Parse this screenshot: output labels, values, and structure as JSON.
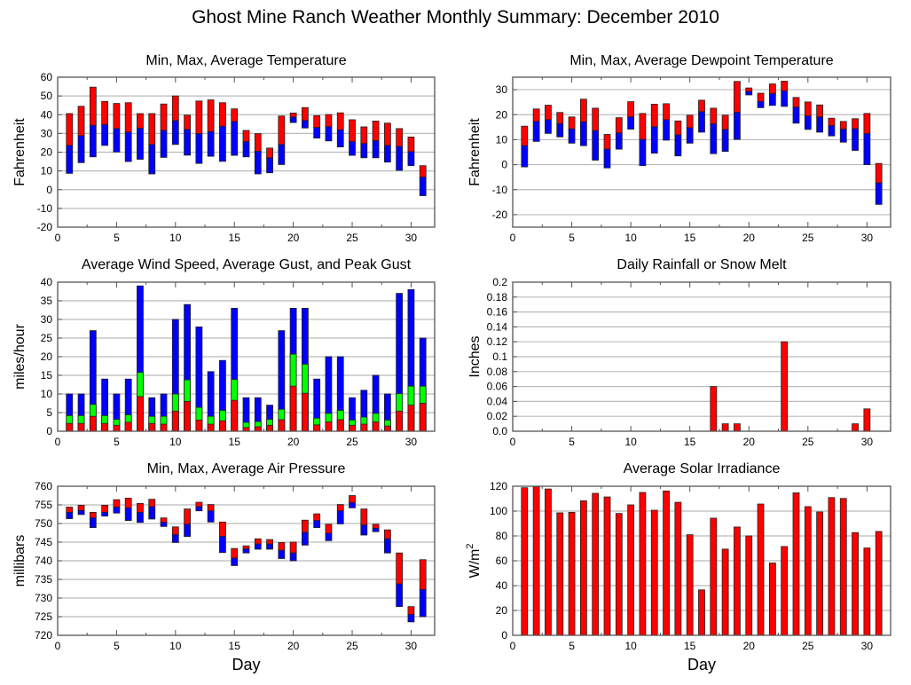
{
  "title": "Ghost Mine Ranch Weather Monthly Summary: December 2010",
  "colors": {
    "red": "#ff0000",
    "blue": "#0000ff",
    "green": "#00ff00",
    "grid": "#bbbbbb",
    "frame": "#555555"
  },
  "chart_data": [
    {
      "id": "temperature",
      "type": "bar",
      "subtype": "floating-range",
      "title": "Min, Max, Average Temperature",
      "ylabel": "Fahrenheit",
      "xlabel": "",
      "xlim": [
        0,
        32
      ],
      "ylim": [
        -20,
        60
      ],
      "yticks": [
        -20,
        -10,
        0,
        10,
        20,
        30,
        40,
        50,
        60
      ],
      "ytick_labels": [
        "-20",
        "-10",
        "0",
        "10",
        "20",
        "30",
        "40",
        "50",
        "60"
      ],
      "xticks": [
        0,
        5,
        10,
        15,
        20,
        25,
        30
      ],
      "grid": true,
      "x": [
        1,
        2,
        3,
        4,
        5,
        6,
        7,
        8,
        9,
        10,
        11,
        12,
        13,
        14,
        15,
        16,
        17,
        18,
        19,
        20,
        21,
        22,
        23,
        24,
        25,
        26,
        27,
        28,
        29,
        30,
        31
      ],
      "series": [
        {
          "name": "Max",
          "color": "red",
          "values": [
            40.6,
            44.5,
            54.7,
            47.1,
            46.0,
            46.4,
            40.6,
            40.6,
            45.7,
            50.0,
            39.8,
            47.3,
            47.9,
            46.4,
            43.1,
            31.6,
            29.9,
            22.2,
            39.3,
            40.9,
            43.8,
            39.5,
            40.1,
            41.0,
            37.3,
            33.5,
            36.6,
            35.5,
            32.6,
            28.1,
            12.8
          ]
        },
        {
          "name": "Average",
          "color": "blue",
          "values": [
            23.6,
            28.8,
            34.3,
            34.7,
            32.6,
            30.7,
            32.7,
            24.1,
            31.6,
            36.8,
            32.1,
            29.9,
            31.0,
            33.8,
            36.3,
            25.6,
            20.5,
            17.0,
            24.1,
            38.7,
            36.9,
            33.2,
            33.6,
            31.9,
            25.6,
            24.6,
            26.1,
            23.6,
            23.1,
            20.3,
            6.7
          ]
        },
        {
          "name": "Min",
          "color": "blue",
          "values": [
            8.7,
            14.4,
            17.5,
            23.6,
            20.1,
            15.0,
            16.2,
            8.4,
            17.2,
            24.1,
            18.4,
            14.0,
            17.8,
            15.1,
            18.3,
            17.5,
            8.4,
            9.0,
            13.4,
            35.8,
            32.9,
            27.5,
            26.0,
            22.8,
            18.3,
            17.0,
            17.0,
            14.7,
            10.3,
            12.8,
            -3.2
          ]
        }
      ]
    },
    {
      "id": "dewpoint",
      "type": "bar",
      "subtype": "floating-range",
      "title": "Min, Max, Average Dewpoint Temperature",
      "ylabel": "Fahrenheit",
      "xlabel": "",
      "xlim": [
        0,
        32
      ],
      "ylim": [
        -25,
        35
      ],
      "yticks": [
        -20,
        -10,
        0,
        10,
        20,
        30
      ],
      "ytick_labels": [
        "-20",
        "-10",
        "0",
        "10",
        "20",
        "30"
      ],
      "xticks": [
        0,
        5,
        10,
        15,
        20,
        25,
        30
      ],
      "grid": true,
      "x": [
        1,
        2,
        3,
        4,
        5,
        6,
        7,
        8,
        9,
        10,
        11,
        12,
        13,
        14,
        15,
        16,
        17,
        18,
        19,
        20,
        21,
        22,
        23,
        24,
        25,
        26,
        27,
        28,
        29,
        30,
        31
      ],
      "series": [
        {
          "name": "Max",
          "color": "red",
          "values": [
            15.4,
            22.3,
            23.8,
            20.9,
            19.1,
            26.2,
            22.6,
            12.1,
            18.8,
            25.2,
            20.5,
            24.2,
            24.4,
            17.5,
            19.8,
            25.8,
            22.6,
            19.8,
            33.3,
            30.7,
            28.6,
            32.3,
            33.4,
            26.9,
            25.1,
            23.9,
            18.6,
            17.3,
            18.4,
            20.5,
            0.5
          ]
        },
        {
          "name": "Average",
          "color": "blue",
          "values": [
            7.6,
            17.3,
            18.0,
            16.4,
            14.3,
            17.1,
            13.6,
            6.2,
            12.7,
            19.1,
            10.1,
            15.2,
            18.0,
            11.9,
            14.8,
            21.2,
            16.3,
            14.1,
            20.9,
            29.3,
            25.3,
            28.4,
            29.5,
            23.0,
            19.5,
            19.1,
            15.6,
            14.2,
            14.4,
            12.4,
            -7.3
          ]
        },
        {
          "name": "Min",
          "color": "blue",
          "values": [
            -0.9,
            9.3,
            12.5,
            11.1,
            8.6,
            7.6,
            1.8,
            -1.3,
            6.2,
            14.2,
            -0.4,
            4.6,
            9.8,
            3.5,
            8.6,
            13.0,
            4.4,
            5.3,
            10.1,
            27.9,
            22.8,
            23.7,
            23.3,
            16.6,
            14.1,
            13.0,
            11.5,
            9.0,
            5.7,
            0.0,
            -15.9
          ]
        }
      ]
    },
    {
      "id": "wind",
      "type": "bar",
      "subtype": "stacked-overlay",
      "title": "Average Wind Speed, Average Gust, and Peak Gust",
      "ylabel": "miles/hour",
      "xlabel": "",
      "xlim": [
        0,
        32
      ],
      "ylim": [
        0,
        40
      ],
      "yticks": [
        0,
        5,
        10,
        15,
        20,
        25,
        30,
        35,
        40
      ],
      "ytick_labels": [
        "0",
        "5",
        "10",
        "15",
        "20",
        "25",
        "30",
        "35",
        "40"
      ],
      "xticks": [
        0,
        5,
        10,
        15,
        20,
        25,
        30
      ],
      "grid": true,
      "x": [
        1,
        2,
        3,
        4,
        5,
        6,
        7,
        8,
        9,
        10,
        11,
        12,
        13,
        14,
        15,
        16,
        17,
        18,
        19,
        20,
        21,
        22,
        23,
        24,
        25,
        26,
        27,
        28,
        29,
        30,
        31
      ],
      "series": [
        {
          "name": "Peak Gust",
          "color": "blue",
          "values": [
            10,
            10,
            27,
            14,
            10,
            14,
            39,
            9,
            10,
            30,
            34,
            28,
            16,
            19,
            33,
            9,
            9,
            7,
            27,
            33,
            33,
            14,
            20,
            20,
            9,
            11,
            15,
            10,
            37,
            38,
            25
          ]
        },
        {
          "name": "Average Gust",
          "color": "green",
          "values": [
            4.2,
            4.2,
            7.2,
            4.2,
            3.2,
            4.4,
            15.8,
            4.0,
            4.0,
            10.0,
            13.8,
            6.4,
            4.0,
            5.6,
            13.9,
            2.4,
            2.6,
            3.2,
            5.9,
            20.7,
            18.0,
            3.5,
            4.8,
            5.6,
            3.0,
            3.8,
            4.8,
            3.0,
            10.1,
            12.1,
            12.1
          ]
        },
        {
          "name": "Average Wind Speed",
          "color": "red",
          "values": [
            2.1,
            2.1,
            4.0,
            2.1,
            1.6,
            2.4,
            9.3,
            2.1,
            1.9,
            5.4,
            8.0,
            3.0,
            1.9,
            2.8,
            8.3,
            1.0,
            1.2,
            1.6,
            3.1,
            12.1,
            10.2,
            1.7,
            2.5,
            3.1,
            1.6,
            1.9,
            2.5,
            1.4,
            5.4,
            7.0,
            7.5
          ]
        }
      ]
    },
    {
      "id": "rainfall",
      "type": "bar",
      "title": "Daily Rainfall or Snow Melt",
      "ylabel": "Inches",
      "xlabel": "",
      "xlim": [
        0,
        32
      ],
      "ylim": [
        0,
        0.2
      ],
      "yticks": [
        0,
        0.02,
        0.04,
        0.06,
        0.08,
        0.1,
        0.12,
        0.14,
        0.16,
        0.18,
        0.2
      ],
      "ytick_labels": [
        "0.0",
        "0.02",
        "0.04",
        "0.06",
        "0.08",
        "0.1",
        "0.12",
        "0.14",
        "0.16",
        "0.18",
        "0.2"
      ],
      "xticks": [
        0,
        5,
        10,
        15,
        20,
        25,
        30
      ],
      "grid": true,
      "x": [
        1,
        2,
        3,
        4,
        5,
        6,
        7,
        8,
        9,
        10,
        11,
        12,
        13,
        14,
        15,
        16,
        17,
        18,
        19,
        20,
        21,
        22,
        23,
        24,
        25,
        26,
        27,
        28,
        29,
        30,
        31
      ],
      "series": [
        {
          "name": "Rainfall",
          "color": "red",
          "values": [
            0,
            0,
            0,
            0,
            0,
            0,
            0,
            0,
            0,
            0,
            0,
            0,
            0,
            0,
            0,
            0,
            0.06,
            0.01,
            0.01,
            0,
            0,
            0,
            0.12,
            0,
            0,
            0,
            0,
            0,
            0.01,
            0.03,
            0
          ]
        }
      ]
    },
    {
      "id": "pressure",
      "type": "bar",
      "subtype": "floating-range",
      "title": "Min, Max, Average Air Pressure",
      "ylabel": "millibars",
      "xlabel": "Day",
      "xlim": [
        0,
        32
      ],
      "ylim": [
        720,
        760
      ],
      "yticks": [
        720,
        725,
        730,
        735,
        740,
        745,
        750,
        755,
        760
      ],
      "ytick_labels": [
        "720",
        "725",
        "730",
        "735",
        "740",
        "745",
        "750",
        "755",
        "760"
      ],
      "xticks": [
        0,
        5,
        10,
        15,
        20,
        25,
        30
      ],
      "grid": true,
      "x": [
        1,
        2,
        3,
        4,
        5,
        6,
        7,
        8,
        9,
        10,
        11,
        12,
        13,
        14,
        15,
        16,
        17,
        18,
        19,
        20,
        21,
        22,
        23,
        24,
        25,
        26,
        27,
        28,
        29,
        30,
        31
      ],
      "series": [
        {
          "name": "Max",
          "color": "red",
          "values": [
            754.4,
            754.9,
            753.0,
            754.9,
            756.4,
            756.8,
            755.4,
            756.5,
            751.5,
            749.1,
            753.9,
            755.7,
            755.1,
            750.4,
            743.3,
            744.0,
            745.9,
            745.7,
            744.9,
            745.0,
            750.9,
            752.6,
            749.8,
            755.1,
            757.5,
            753.9,
            749.8,
            748.3,
            742.1,
            727.7,
            740.3
          ]
        },
        {
          "name": "Average",
          "color": "blue",
          "values": [
            753.0,
            753.5,
            751.5,
            753.0,
            754.4,
            754.2,
            753.0,
            754.5,
            750.3,
            747.0,
            749.8,
            754.5,
            753.4,
            746.5,
            740.7,
            743.2,
            744.5,
            744.5,
            742.8,
            742.1,
            747.6,
            750.8,
            747.4,
            753.4,
            755.6,
            749.6,
            748.7,
            745.9,
            733.8,
            725.6,
            732.3
          ]
        },
        {
          "name": "Min",
          "color": "blue",
          "values": [
            751.3,
            752.4,
            748.9,
            752.0,
            752.8,
            750.8,
            750.3,
            751.2,
            749.2,
            744.9,
            746.5,
            753.4,
            750.4,
            742.2,
            738.7,
            742.1,
            743.1,
            743.1,
            740.6,
            740.0,
            744.2,
            748.9,
            745.4,
            749.9,
            754.2,
            746.9,
            747.8,
            742.1,
            727.7,
            723.6,
            725.0
          ]
        }
      ]
    },
    {
      "id": "solar",
      "type": "bar",
      "title": "Average Solar Irradiance",
      "ylabel": "W/m²",
      "ylabel_base": "W/m",
      "ylabel_sup": "2",
      "xlabel": "Day",
      "xlim": [
        0,
        32
      ],
      "ylim": [
        0,
        120
      ],
      "yticks": [
        0,
        20,
        40,
        60,
        80,
        100,
        120
      ],
      "ytick_labels": [
        "0",
        "20",
        "40",
        "60",
        "80",
        "100",
        "120"
      ],
      "xticks": [
        0,
        5,
        10,
        15,
        20,
        25,
        30
      ],
      "grid": true,
      "x": [
        1,
        2,
        3,
        4,
        5,
        6,
        7,
        8,
        9,
        10,
        11,
        12,
        13,
        14,
        15,
        16,
        17,
        18,
        19,
        20,
        21,
        22,
        23,
        24,
        25,
        26,
        27,
        28,
        29,
        30,
        31
      ],
      "series": [
        {
          "name": "Solar Irradiance",
          "color": "red",
          "values": [
            118.8,
            119.7,
            117.8,
            98.6,
            99.0,
            108.3,
            114.3,
            111.4,
            98.1,
            105.0,
            115.0,
            100.7,
            116.2,
            107.1,
            81.0,
            36.6,
            94.3,
            69.4,
            87.2,
            80.0,
            105.7,
            58.2,
            71.5,
            114.7,
            103.6,
            99.3,
            110.9,
            110.2,
            82.7,
            70.3,
            83.6
          ]
        }
      ]
    }
  ]
}
